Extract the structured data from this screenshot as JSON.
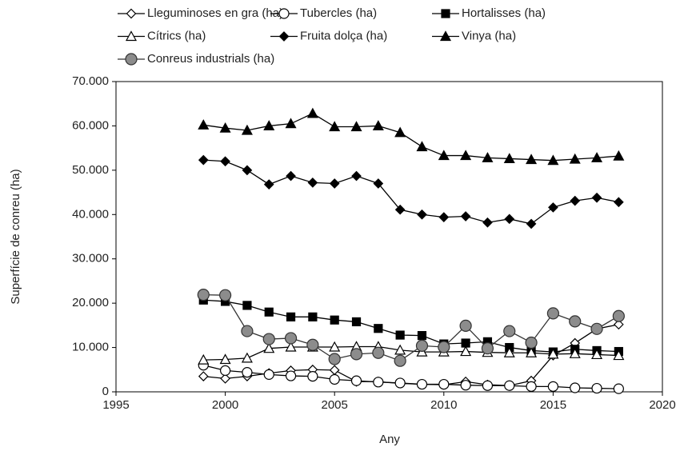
{
  "chart_data": {
    "type": "line",
    "x_label": "Any",
    "y_label": "Superfície de conreu (ha)",
    "x": [
      1999,
      2000,
      2001,
      2002,
      2003,
      2004,
      2005,
      2006,
      2007,
      2008,
      2009,
      2010,
      2011,
      2012,
      2013,
      2014,
      2015,
      2016,
      2017,
      2018
    ],
    "xlim": [
      1995,
      2020
    ],
    "xticks": [
      1995,
      2000,
      2005,
      2010,
      2015,
      2020
    ],
    "ylim": [
      0,
      70000
    ],
    "yticks": [
      0,
      {
        "value": 10000,
        "label": "10.000"
      },
      {
        "value": 20000,
        "label": "20.000"
      },
      {
        "value": 30000,
        "label": "30.000"
      },
      {
        "value": 40000,
        "label": "40.000"
      },
      {
        "value": 50000,
        "label": "50.000"
      },
      {
        "value": 60000,
        "label": "60.000"
      },
      {
        "value": 70000,
        "label": "70.000"
      }
    ],
    "grid": false,
    "series": [
      {
        "name": "Lleguminoses en gra (ha)",
        "color": "#000000",
        "marker": "diamond",
        "marker_fill": "#ffffff",
        "values": [
          3500,
          3000,
          3500,
          4200,
          4800,
          5000,
          4900,
          2300,
          2300,
          1900,
          1700,
          1600,
          2300,
          1600,
          1400,
          2500,
          8200,
          11000,
          14200,
          15200
        ]
      },
      {
        "name": "Tubercles (ha)",
        "color": "#000000",
        "marker": "circle",
        "marker_fill": "#ffffff",
        "values": [
          6000,
          4800,
          4400,
          3900,
          3600,
          3500,
          2800,
          2500,
          2200,
          2000,
          1700,
          1700,
          1500,
          1400,
          1400,
          1200,
          1200,
          900,
          800,
          700
        ]
      },
      {
        "name": "Hortalisses (ha)",
        "color": "#000000",
        "marker": "square",
        "marker_fill": "#000000",
        "values": [
          20700,
          20400,
          19500,
          18000,
          16900,
          16900,
          16200,
          15800,
          14300,
          12800,
          12700,
          10800,
          11000,
          11300,
          10000,
          9300,
          9000,
          9600,
          9300,
          9100
        ]
      },
      {
        "name": "Cítrics (ha)",
        "color": "#000000",
        "marker": "triangle",
        "marker_fill": "#ffffff",
        "values": [
          7200,
          7300,
          7600,
          9800,
          10100,
          10100,
          10100,
          10200,
          10200,
          9400,
          9000,
          9000,
          9100,
          8900,
          8800,
          8800,
          8500,
          8600,
          8400,
          8200
        ]
      },
      {
        "name": "Fruita dolça (ha)",
        "color": "#000000",
        "marker": "diamond",
        "marker_fill": "#000000",
        "values": [
          52300,
          52000,
          50000,
          46800,
          48700,
          47200,
          47000,
          48700,
          47000,
          41100,
          40000,
          39400,
          39600,
          38200,
          39000,
          37900,
          41600,
          43100,
          43800,
          42800
        ]
      },
      {
        "name": "Vinya (ha)",
        "color": "#000000",
        "marker": "triangle",
        "marker_fill": "#000000",
        "values": [
          60200,
          59500,
          59000,
          60000,
          60500,
          62800,
          59800,
          59800,
          60000,
          58500,
          55300,
          53300,
          53300,
          52800,
          52600,
          52400,
          52200,
          52500,
          52800,
          53200
        ]
      },
      {
        "name": "Conreus industrials (ha)",
        "color": "#333333",
        "marker": "circle",
        "marker_fill": "#8c8c8c",
        "values": [
          21900,
          21800,
          13700,
          11900,
          12100,
          10600,
          7400,
          8500,
          8800,
          7000,
          10400,
          10100,
          14900,
          9800,
          13700,
          11100,
          17700,
          15900,
          14200,
          17100
        ]
      }
    ]
  }
}
